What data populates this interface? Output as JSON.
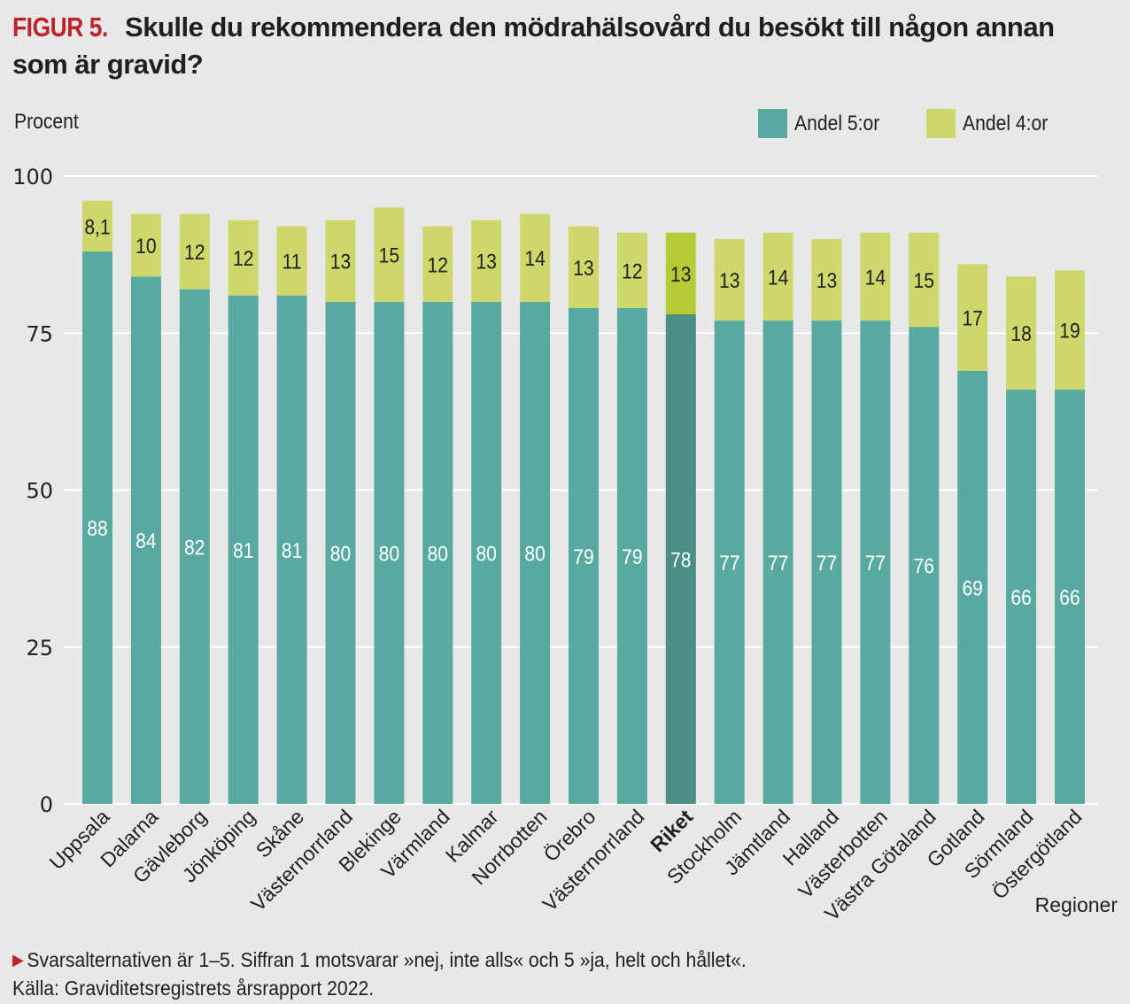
{
  "figure": {
    "label": "FIGUR 5.",
    "title": "Skulle du rekommendera den mödrahälsovård du besökt till någon annan som är gravid?"
  },
  "footnote": {
    "note": "Svarsalternativen är 1–5. Siffran 1 motsvarar »nej, inte alls« och 5 »ja, helt och hållet«.",
    "source": "Källa: Graviditetsregistrets årsrapport 2022.",
    "marker_icon": "triangle-right-icon"
  },
  "colors": {
    "background": "#e8e8e8",
    "series_5": "#58aaa0",
    "series_4": "#cdd76a",
    "highlight_5": "#4a8e84",
    "highlight_4": "#b7c935",
    "accent": "#c0202a",
    "grid": "#ffffff"
  },
  "chart_data": {
    "type": "bar",
    "stacked": true,
    "title": "Skulle du rekommendera den mödrahälsovård du besökt till någon annan som är gravid?",
    "ylabel": "Procent",
    "xlabel": "Regioner",
    "ylim": [
      0,
      100
    ],
    "yticks": [
      0,
      25,
      50,
      75,
      100
    ],
    "grid": true,
    "legend_position": "top-right",
    "highlight_category": "Riket",
    "categories": [
      "Uppsala",
      "Dalarna",
      "Gävleborg",
      "Jönköping",
      "Skåne",
      "Västernorrland",
      "Blekinge",
      "Värmland",
      "Kalmar",
      "Norrbotten",
      "Örebro",
      "Västernorrland",
      "Riket",
      "Stockholm",
      "Jämtland",
      "Halland",
      "Västerbotten",
      "Västra Götaland",
      "Gotland",
      "Sörmland",
      "Östergötland"
    ],
    "series": [
      {
        "name": "Andel 5:or",
        "values": [
          88,
          84,
          82,
          81,
          81,
          80,
          80,
          80,
          80,
          80,
          79,
          79,
          78,
          77,
          77,
          77,
          77,
          76,
          69,
          66,
          66
        ],
        "labels": [
          "88",
          "84",
          "82",
          "81",
          "81",
          "80",
          "80",
          "80",
          "80",
          "80",
          "79",
          "79",
          "78",
          "77",
          "77",
          "77",
          "77",
          "76",
          "69",
          "66",
          "66"
        ]
      },
      {
        "name": "Andel 4:or",
        "values": [
          8.1,
          10,
          12,
          12,
          11,
          13,
          15,
          12,
          13,
          14,
          13,
          12,
          13,
          13,
          14,
          13,
          14,
          15,
          17,
          18,
          19
        ],
        "labels": [
          "8,1",
          "10",
          "12",
          "12",
          "11",
          "13",
          "15",
          "12",
          "13",
          "14",
          "13",
          "12",
          "13",
          "13",
          "14",
          "13",
          "14",
          "15",
          "17",
          "18",
          "19"
        ]
      }
    ]
  }
}
